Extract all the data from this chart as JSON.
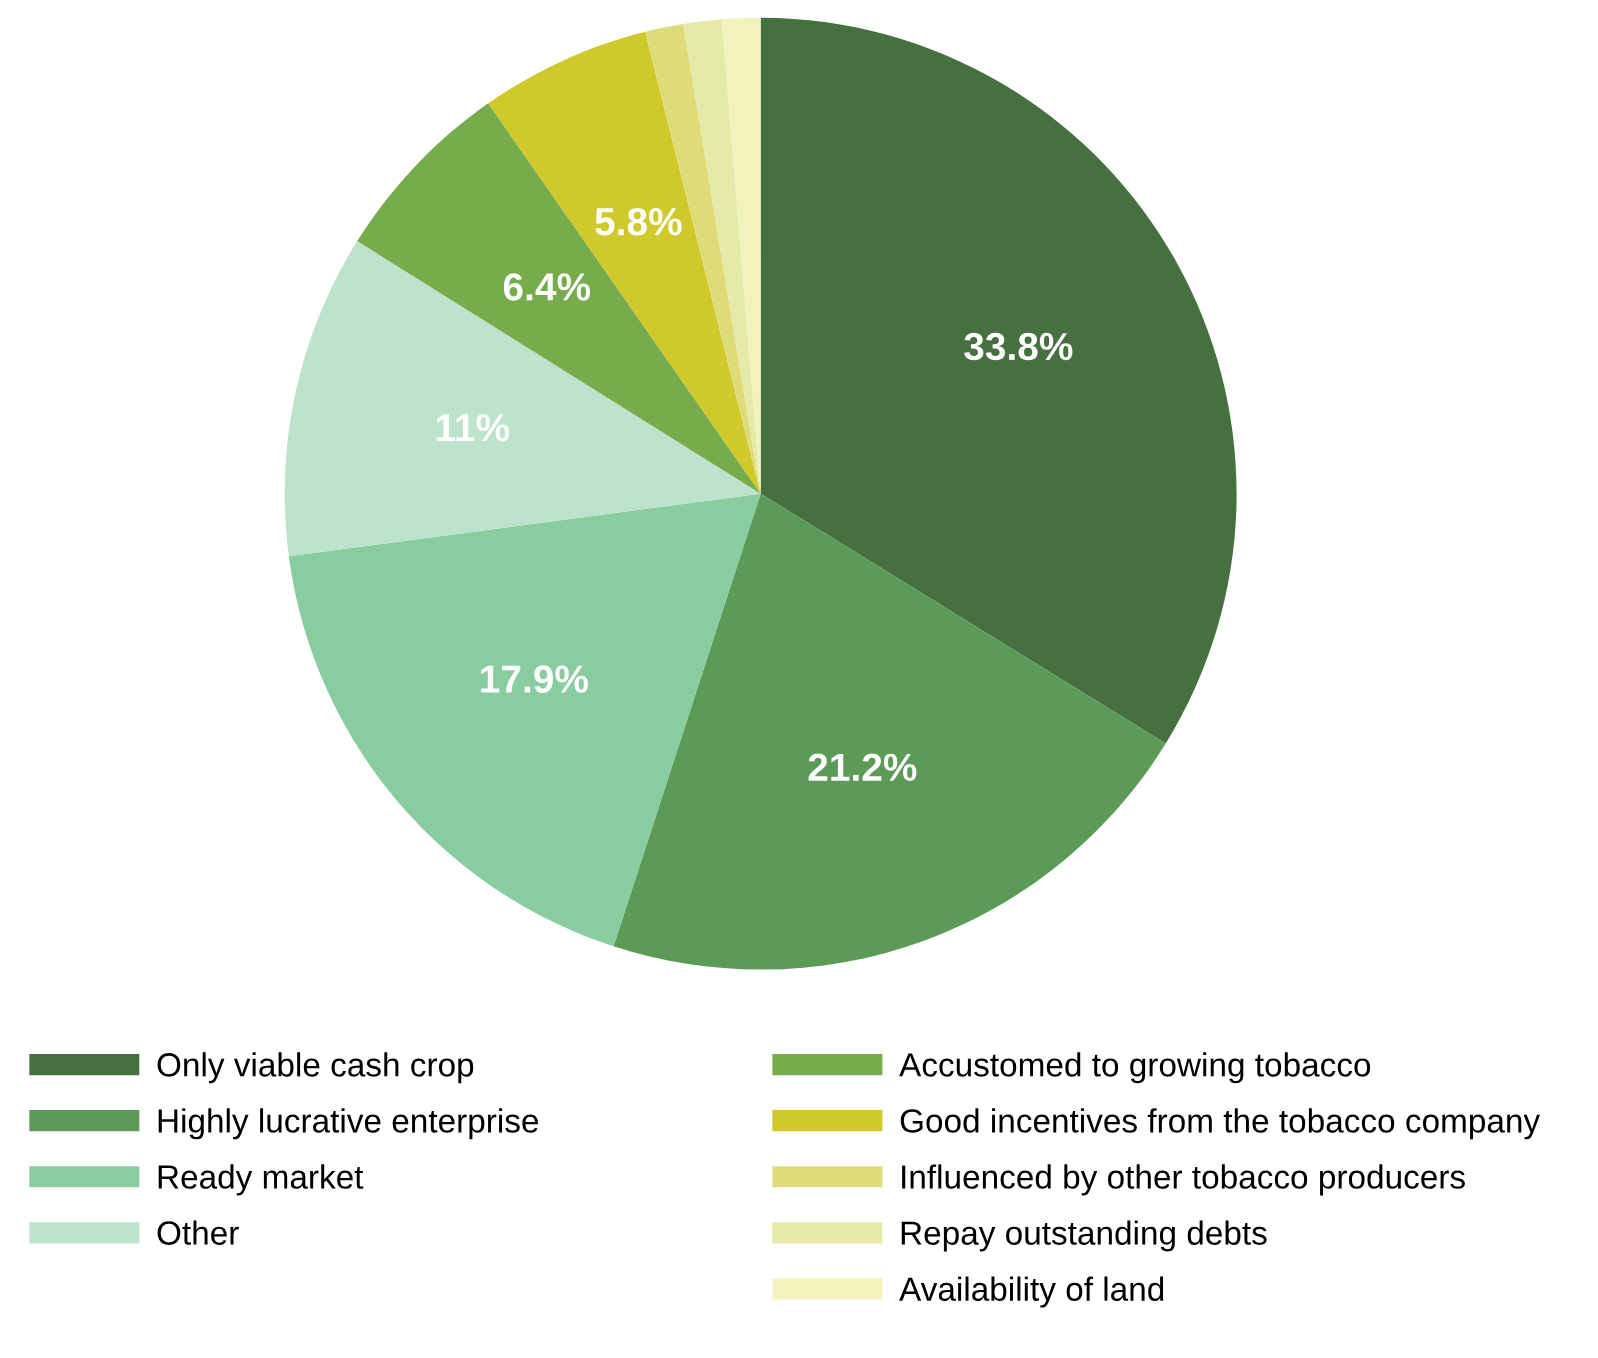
{
  "chart_data": {
    "type": "pie",
    "categories": [
      "Only viable cash crop",
      "Highly lucrative enterprise",
      "Ready market",
      "Other",
      "Accustomed to growing tobacco",
      "Good incentives from the tobacco company",
      "Influenced by other tobacco producers",
      "Repay outstanding debts",
      "Availability of land"
    ],
    "values": [
      33.8,
      21.2,
      17.9,
      11,
      6.4,
      5.8,
      1.3,
      1.3,
      1.3
    ],
    "value_labels": [
      "33.8%",
      "21.2%",
      "17.9%",
      "11%",
      "6.4%",
      "5.8%",
      null,
      null,
      null
    ],
    "colors": [
      "#467040",
      "#5c9a58",
      "#88cca0",
      "#bde3cc",
      "#76ac4c",
      "#cfc92c",
      "#dedc78",
      "#e6eaa8",
      "#f1f2bc"
    ],
    "legend": "bottom"
  }
}
